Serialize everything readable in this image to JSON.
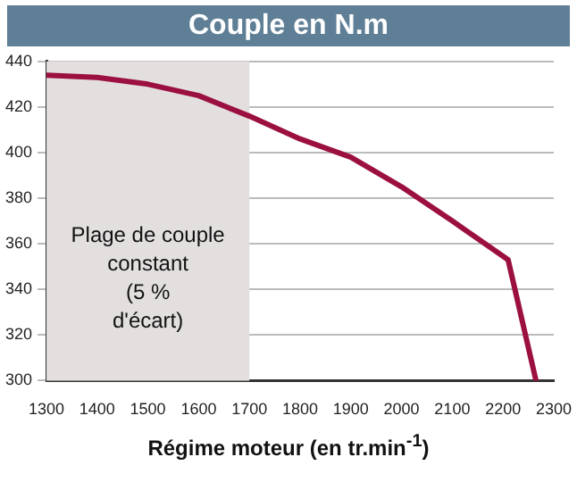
{
  "chart_data": {
    "type": "line",
    "title": "Couple en N.m",
    "xlabel": "Régime moteur (en tr.min$^{-1}$)",
    "x": [
      1300,
      1400,
      1500,
      1600,
      1700,
      1800,
      1900,
      2000,
      2100,
      2210,
      2265
    ],
    "series": [
      {
        "color": "#9b1040",
        "values": [
          434,
          433,
          430,
          425,
          416,
          406,
          398,
          385,
          370,
          353,
          300
        ]
      }
    ],
    "xlim": [
      1300,
      2300
    ],
    "xticks": [
      1300,
      1400,
      1500,
      1600,
      1700,
      1800,
      1900,
      2000,
      2100,
      2200,
      2300
    ],
    "ylim": [
      300,
      440
    ],
    "yticks": [
      300,
      320,
      340,
      360,
      380,
      400,
      420,
      440
    ],
    "grid": "y",
    "marker": "none",
    "line_style": "solid",
    "legend": false,
    "bands": [
      {
        "axis": "x",
        "from": 1300,
        "to": 1700,
        "label": "Plage de couple constant (5 % d'écart)",
        "color": "#e4dfdf"
      }
    ]
  }
}
